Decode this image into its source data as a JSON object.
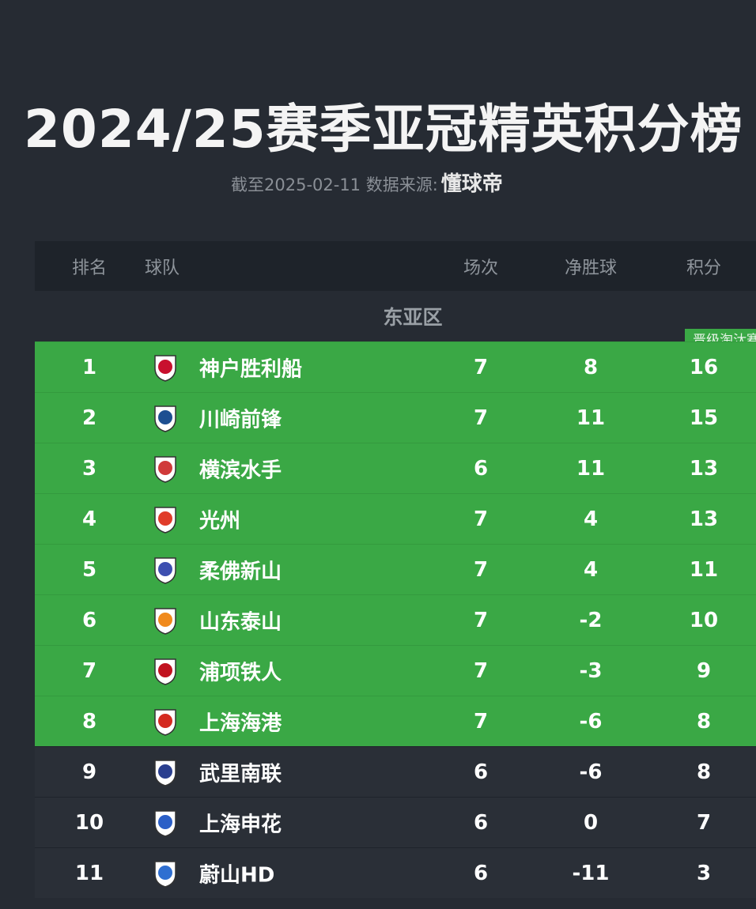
{
  "header": {
    "title": "2024/25赛季亚冠精英积分榜",
    "subtitle": "截至2025-02-11 数据来源:",
    "source": "懂球帝"
  },
  "table": {
    "columns": [
      "排名",
      "球队",
      "场次",
      "净胜球",
      "积分"
    ],
    "zone": "东亚区",
    "badge": "晋级淘汰赛",
    "highlight_color": "#3aa845",
    "rows": [
      {
        "rank": 1,
        "team": "神户胜利船",
        "played": 7,
        "gd": 8,
        "pts": 16,
        "highlight": true,
        "logo": "#c8102e"
      },
      {
        "rank": 2,
        "team": "川崎前锋",
        "played": 7,
        "gd": 11,
        "pts": 15,
        "highlight": true,
        "logo": "#1d4f91"
      },
      {
        "rank": 3,
        "team": "横滨水手",
        "played": 6,
        "gd": 11,
        "pts": 13,
        "highlight": true,
        "logo": "#d03a3a"
      },
      {
        "rank": 4,
        "team": "光州",
        "played": 7,
        "gd": 4,
        "pts": 13,
        "highlight": true,
        "logo": "#e03c2a"
      },
      {
        "rank": 5,
        "team": "柔佛新山",
        "played": 7,
        "gd": 4,
        "pts": 11,
        "highlight": true,
        "logo": "#3d4fb0"
      },
      {
        "rank": 6,
        "team": "山东泰山",
        "played": 7,
        "gd": -2,
        "pts": 10,
        "highlight": true,
        "logo": "#f08a1c"
      },
      {
        "rank": 7,
        "team": "浦项铁人",
        "played": 7,
        "gd": -3,
        "pts": 9,
        "highlight": true,
        "logo": "#c1121f"
      },
      {
        "rank": 8,
        "team": "上海海港",
        "played": 7,
        "gd": -6,
        "pts": 8,
        "highlight": true,
        "logo": "#d42a20"
      },
      {
        "rank": 9,
        "team": "武里南联",
        "played": 6,
        "gd": -6,
        "pts": 8,
        "highlight": false,
        "logo": "#2a3f8f"
      },
      {
        "rank": 10,
        "team": "上海申花",
        "played": 6,
        "gd": 0,
        "pts": 7,
        "highlight": false,
        "logo": "#2b5fc7"
      },
      {
        "rank": 11,
        "team": "蔚山HD",
        "played": 6,
        "gd": -11,
        "pts": 3,
        "highlight": false,
        "logo": "#2f6fd1"
      }
    ]
  }
}
